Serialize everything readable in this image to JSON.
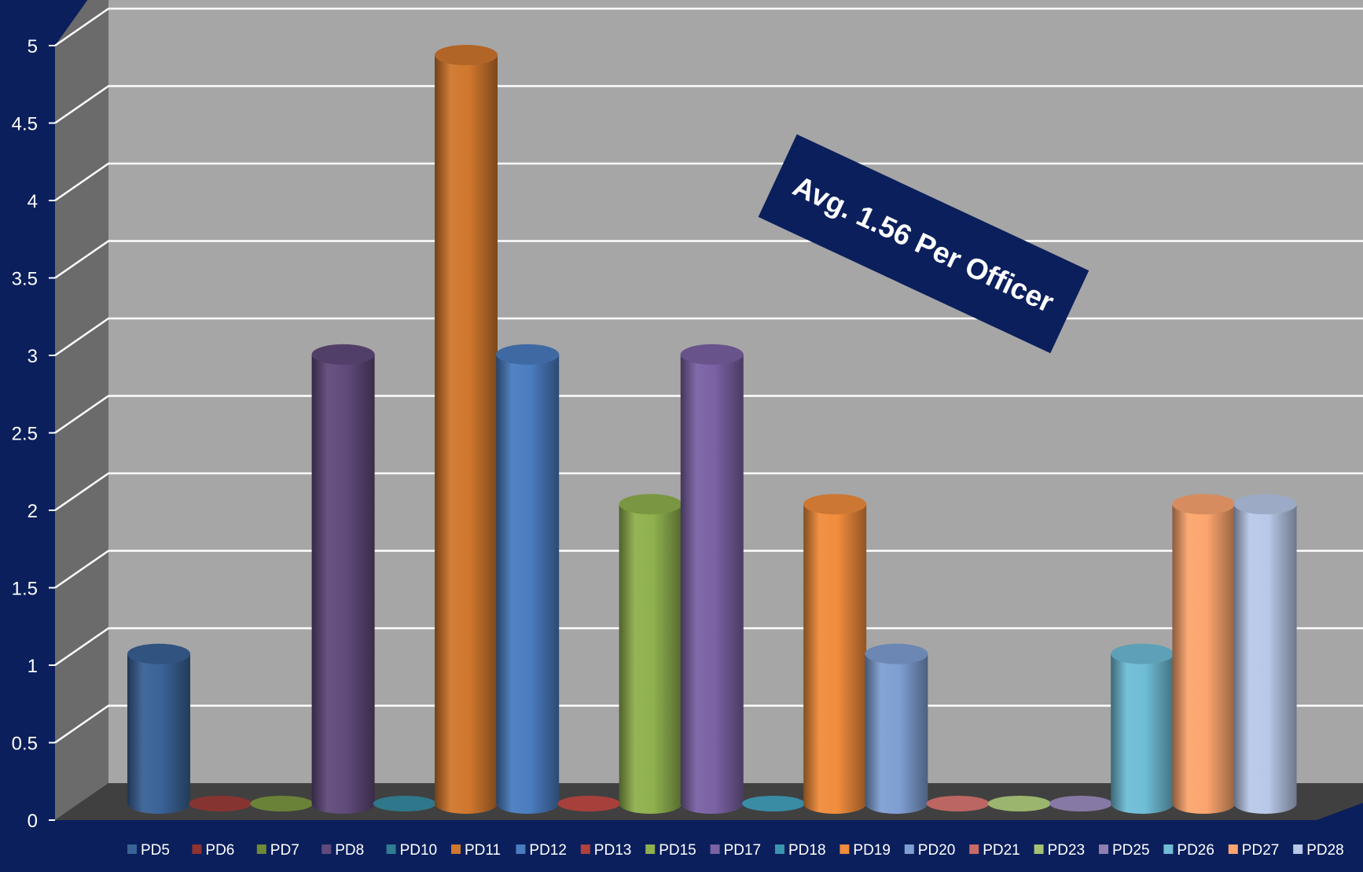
{
  "chart_data": {
    "type": "bar",
    "style": "3d-cylinder",
    "title": "",
    "xlabel": "",
    "ylabel": "",
    "ylim": [
      0,
      5
    ],
    "yticks": [
      "0",
      "0.5",
      "1",
      "1.5",
      "2",
      "2.5",
      "3",
      "3.5",
      "4",
      "4.5",
      "5"
    ],
    "grid": true,
    "legend_position": "bottom",
    "series": [
      {
        "name": "PD5",
        "value": 1,
        "color": "#3a6296"
      },
      {
        "name": "PD6",
        "value": 0,
        "color": "#8e3330"
      },
      {
        "name": "PD7",
        "value": 0,
        "color": "#6f8a36"
      },
      {
        "name": "PD8",
        "value": 3,
        "color": "#604a7b"
      },
      {
        "name": "PD10",
        "value": 0,
        "color": "#2e7d92"
      },
      {
        "name": "PD11",
        "value": 5,
        "color": "#d0772e"
      },
      {
        "name": "PD12",
        "value": 3,
        "color": "#4a7cbf"
      },
      {
        "name": "PD13",
        "value": 0,
        "color": "#b2403b"
      },
      {
        "name": "PD15",
        "value": 2,
        "color": "#8fb04e"
      },
      {
        "name": "PD17",
        "value": 3,
        "color": "#7a62a3"
      },
      {
        "name": "PD18",
        "value": 0,
        "color": "#3a95b0"
      },
      {
        "name": "PD19",
        "value": 2,
        "color": "#f08c3c"
      },
      {
        "name": "PD20",
        "value": 1,
        "color": "#7f9fd3"
      },
      {
        "name": "PD21",
        "value": 0,
        "color": "#c96a66"
      },
      {
        "name": "PD23",
        "value": 0,
        "color": "#a5c273"
      },
      {
        "name": "PD25",
        "value": 0,
        "color": "#8f7fb0"
      },
      {
        "name": "PD26",
        "value": 1,
        "color": "#6fbdd6"
      },
      {
        "name": "PD27",
        "value": 2,
        "color": "#fca56e"
      },
      {
        "name": "PD28",
        "value": 2,
        "color": "#b8c8e8"
      }
    ],
    "annotation": "Avg. 1.56 Per Officer",
    "colors": {
      "background": "#0b1f5c",
      "back_wall": "#a6a6a6",
      "side_wall": "#6b6b6b",
      "floor": "#404040",
      "gridline": "#ffffff",
      "annotation_box": "#0b1f5c",
      "text": "#ffffff"
    }
  }
}
